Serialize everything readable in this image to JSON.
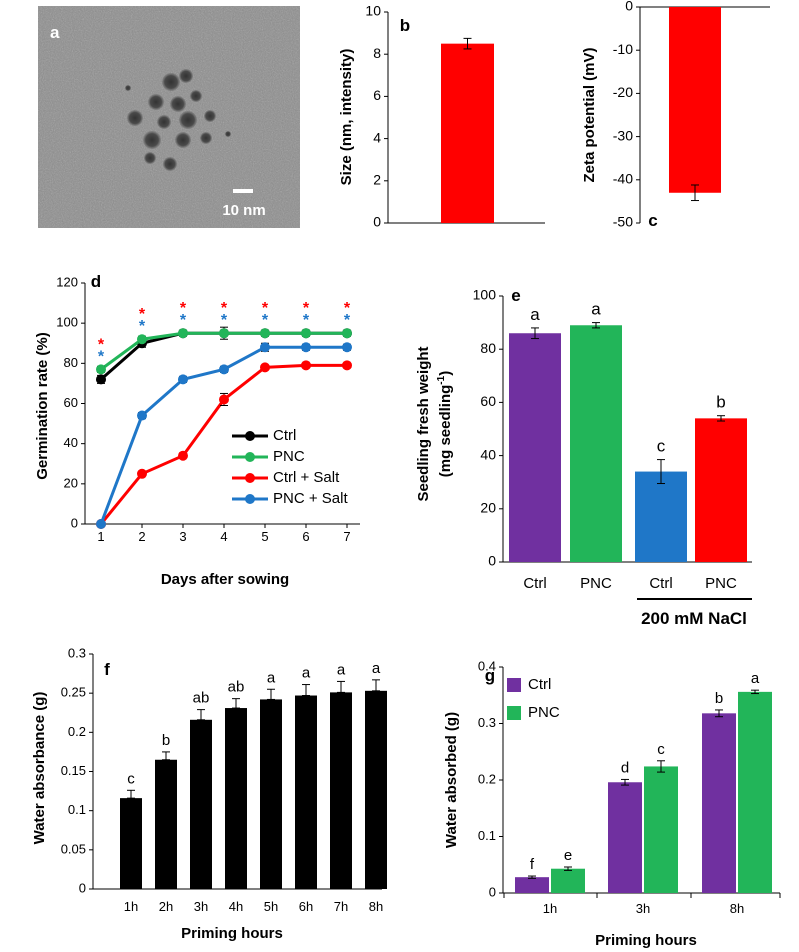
{
  "panels": {
    "a": {
      "label": "a",
      "scale_bar": "10 nm"
    }
  },
  "colors": {
    "red": "#ff0000",
    "green": "#22b559",
    "blue": "#1f77c8",
    "black": "#000000",
    "purple": "#7030a0",
    "micro_bg": "#8a8a8a"
  },
  "chart_data": [
    {
      "panel": "b",
      "type": "bar",
      "categories": [
        ""
      ],
      "values": [
        8.5
      ],
      "errors": [
        0.25
      ],
      "ylabel": "Size (nm, intensity)",
      "ylim": [
        0,
        10
      ],
      "yticks": [
        0,
        2,
        4,
        6,
        8,
        10
      ],
      "color": "#ff0000"
    },
    {
      "panel": "c",
      "type": "bar",
      "categories": [
        ""
      ],
      "values": [
        -43
      ],
      "errors": [
        1.8
      ],
      "ylabel": "Zeta potential (mV)",
      "ylim": [
        -50,
        0
      ],
      "yticks": [
        0,
        -10,
        -20,
        -30,
        -40,
        -50
      ],
      "color": "#ff0000"
    },
    {
      "panel": "d",
      "type": "line",
      "x": [
        1,
        2,
        3,
        4,
        5,
        6,
        7
      ],
      "series": [
        {
          "name": "Ctrl",
          "values": [
            72,
            90,
            95,
            95,
            95,
            95,
            95
          ],
          "errors": [
            2,
            2,
            1.5,
            3,
            1.5,
            1.5,
            1.5
          ],
          "color": "#000000"
        },
        {
          "name": "PNC",
          "values": [
            77,
            92,
            95,
            95,
            95,
            95,
            95
          ],
          "errors": [
            1.5,
            1.5,
            1,
            1,
            1,
            1,
            1
          ],
          "color": "#22b559"
        },
        {
          "name": "Ctrl + Salt",
          "values": [
            0,
            25,
            34,
            62,
            78,
            79,
            79
          ],
          "errors": [
            0.5,
            1,
            1,
            3,
            1,
            1,
            1
          ],
          "color": "#ff0000"
        },
        {
          "name": "PNC + Salt",
          "values": [
            0,
            54,
            72,
            77,
            88,
            88,
            88
          ],
          "errors": [
            0.5,
            1.5,
            1.5,
            1.5,
            2,
            1.5,
            1.5
          ],
          "color": "#1f77c8"
        }
      ],
      "ylabel": "Germination rate (%)",
      "xlabel": "Days after sowing",
      "ylim": [
        0,
        120
      ],
      "yticks": [
        0,
        20,
        40,
        60,
        80,
        100,
        120
      ],
      "significance_marks": [
        {
          "x": 1,
          "red": "*",
          "blue": "*"
        },
        {
          "x": 2,
          "red": "*",
          "blue": "*"
        },
        {
          "x": 3,
          "red": "*",
          "blue": "*"
        },
        {
          "x": 4,
          "red": "*",
          "blue": "*"
        },
        {
          "x": 5,
          "red": "*",
          "blue": "*"
        },
        {
          "x": 6,
          "red": "*",
          "blue": "*"
        },
        {
          "x": 7,
          "red": "*",
          "blue": "*"
        }
      ],
      "legend": "lower-right"
    },
    {
      "panel": "e",
      "type": "bar",
      "categories": [
        "Ctrl",
        "PNC",
        "Ctrl",
        "PNC"
      ],
      "values": [
        86,
        89,
        34,
        54
      ],
      "errors": [
        2,
        1,
        4.5,
        1
      ],
      "letters": [
        "a",
        "a",
        "c",
        "b"
      ],
      "colors": [
        "#7030a0",
        "#22b559",
        "#1f77c8",
        "#ff0000"
      ],
      "ylabel_line1": "Seedling fresh weight",
      "ylabel_line2_pre": "(mg seedling",
      "ylabel_line2_sup": "-1",
      "ylabel_line2_post": ")",
      "group_label": "200 mM NaCl",
      "ylim": [
        0,
        100
      ],
      "yticks": [
        0,
        20,
        40,
        60,
        80,
        100
      ]
    },
    {
      "panel": "f",
      "type": "bar",
      "categories": [
        "1h",
        "2h",
        "3h",
        "4h",
        "5h",
        "6h",
        "7h",
        "8h"
      ],
      "values": [
        0.116,
        0.165,
        0.216,
        0.231,
        0.242,
        0.247,
        0.251,
        0.253
      ],
      "errors": [
        0.01,
        0.01,
        0.013,
        0.012,
        0.013,
        0.014,
        0.014,
        0.014
      ],
      "letters": [
        "c",
        "b",
        "ab",
        "ab",
        "a",
        "a",
        "a",
        "a"
      ],
      "color": "#000000",
      "ylabel": "Water absorbance (g)",
      "xlabel": "Priming hours",
      "ylim": [
        0,
        0.3
      ],
      "yticks": [
        "0",
        "0.05",
        "0.1",
        "0.15",
        "0.2",
        "0.25",
        "0.3"
      ]
    },
    {
      "panel": "g",
      "type": "bar",
      "categories": [
        "1h",
        "3h",
        "8h"
      ],
      "series": [
        {
          "name": "Ctrl",
          "values": [
            0.028,
            0.196,
            0.318
          ],
          "errors": [
            0.002,
            0.005,
            0.006
          ],
          "letters": [
            "f",
            "d",
            "b"
          ],
          "color": "#7030a0"
        },
        {
          "name": "PNC",
          "values": [
            0.043,
            0.224,
            0.356
          ],
          "errors": [
            0.003,
            0.01,
            0.003
          ],
          "letters": [
            "e",
            "c",
            "a"
          ],
          "color": "#22b559"
        }
      ],
      "ylabel": "Water absorbed (g)",
      "xlabel": "Priming hours",
      "ylim": [
        0,
        0.4
      ],
      "yticks": [
        "0",
        "0.1",
        "0.2",
        "0.3",
        "0.4"
      ],
      "legend": "top-left"
    }
  ]
}
